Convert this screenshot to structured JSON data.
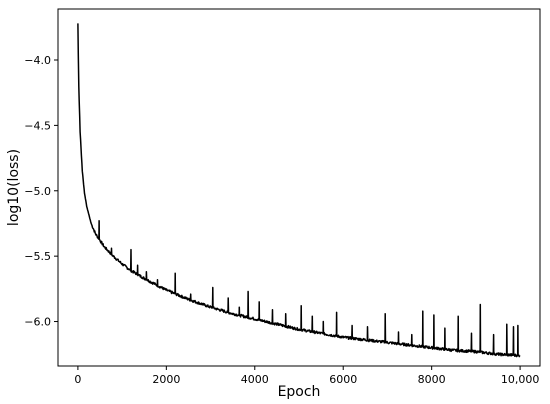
{
  "chart_data": {
    "type": "line",
    "title": "",
    "xlabel": "Epoch",
    "ylabel": "log10(loss)",
    "xlim": [
      -450,
      10450
    ],
    "ylim": [
      -6.34,
      -3.61
    ],
    "xticks": [
      0,
      2000,
      4000,
      6000,
      8000,
      10000
    ],
    "xtick_labels": [
      "0",
      "2000",
      "4000",
      "6000",
      "8000",
      "10,000"
    ],
    "yticks": [
      -6.0,
      -5.5,
      -5.0,
      -4.5,
      -4.0
    ],
    "ytick_labels": [
      "−6.0",
      "−5.5",
      "−5.0",
      "−4.5",
      "−4.0"
    ],
    "grid": false,
    "legend": false,
    "line_color": "#000000",
    "series": [
      {
        "baseline": {
          "x": [
            0,
            20,
            50,
            100,
            150,
            200,
            300,
            400,
            500,
            600,
            800,
            1000,
            1200,
            1500,
            2000,
            2500,
            3000,
            3500,
            4000,
            4500,
            5000,
            5500,
            6000,
            6500,
            7000,
            7500,
            8000,
            8500,
            9000,
            9500,
            10000
          ],
          "y": [
            -3.72,
            -4.2,
            -4.55,
            -4.85,
            -5.02,
            -5.12,
            -5.25,
            -5.33,
            -5.38,
            -5.43,
            -5.5,
            -5.56,
            -5.61,
            -5.67,
            -5.76,
            -5.83,
            -5.89,
            -5.94,
            -5.98,
            -6.02,
            -6.06,
            -6.09,
            -6.12,
            -6.14,
            -6.16,
            -6.18,
            -6.2,
            -6.22,
            -6.23,
            -6.25,
            -6.26
          ]
        },
        "spikes": {
          "x": [
            480,
            760,
            1200,
            1350,
            1550,
            1800,
            2200,
            2550,
            2800,
            3050,
            3400,
            3650,
            3850,
            4100,
            4400,
            4700,
            5050,
            5300,
            5550,
            5850,
            6200,
            6550,
            6950,
            7250,
            7550,
            7800,
            8050,
            8300,
            8600,
            8900,
            9100,
            9400,
            9700,
            9850,
            9950
          ],
          "y": [
            -5.23,
            -5.44,
            -5.45,
            -5.57,
            -5.62,
            -5.68,
            -5.63,
            -5.79,
            -5.86,
            -5.74,
            -5.82,
            -5.89,
            -5.77,
            -5.85,
            -5.91,
            -5.94,
            -5.88,
            -5.96,
            -6.0,
            -5.93,
            -6.03,
            -6.04,
            -5.94,
            -6.08,
            -6.1,
            -5.92,
            -5.95,
            -6.05,
            -5.96,
            -6.09,
            -5.87,
            -6.1,
            -6.02,
            -6.04,
            -6.03
          ]
        }
      }
    ]
  }
}
